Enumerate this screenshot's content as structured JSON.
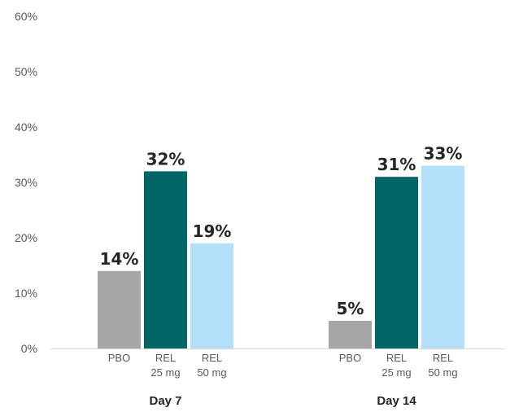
{
  "chart_data": {
    "type": "bar",
    "ylim": [
      0,
      60
    ],
    "yticks": [
      "0%",
      "10%",
      "20%",
      "30%",
      "40%",
      "50%",
      "60%"
    ],
    "grid": false,
    "groups": [
      {
        "name": "Day 7",
        "bars": [
          {
            "label": [
              "PBO"
            ],
            "value": 14,
            "data_label": "14%",
            "color": "#a6a6a6"
          },
          {
            "label": [
              "REL",
              "25 mg"
            ],
            "value": 32,
            "data_label": "32%",
            "color": "#006666"
          },
          {
            "label": [
              "REL",
              "50 mg"
            ],
            "value": 19,
            "data_label": "19%",
            "color": "#b3e0f8"
          }
        ]
      },
      {
        "name": "Day 14",
        "bars": [
          {
            "label": [
              "PBO"
            ],
            "value": 5,
            "data_label": "5%",
            "color": "#a6a6a6"
          },
          {
            "label": [
              "REL",
              "25 mg"
            ],
            "value": 31,
            "data_label": "31%",
            "color": "#006666"
          },
          {
            "label": [
              "REL",
              "50 mg"
            ],
            "value": 33,
            "data_label": "33%",
            "color": "#b3e0f8"
          }
        ]
      }
    ]
  }
}
